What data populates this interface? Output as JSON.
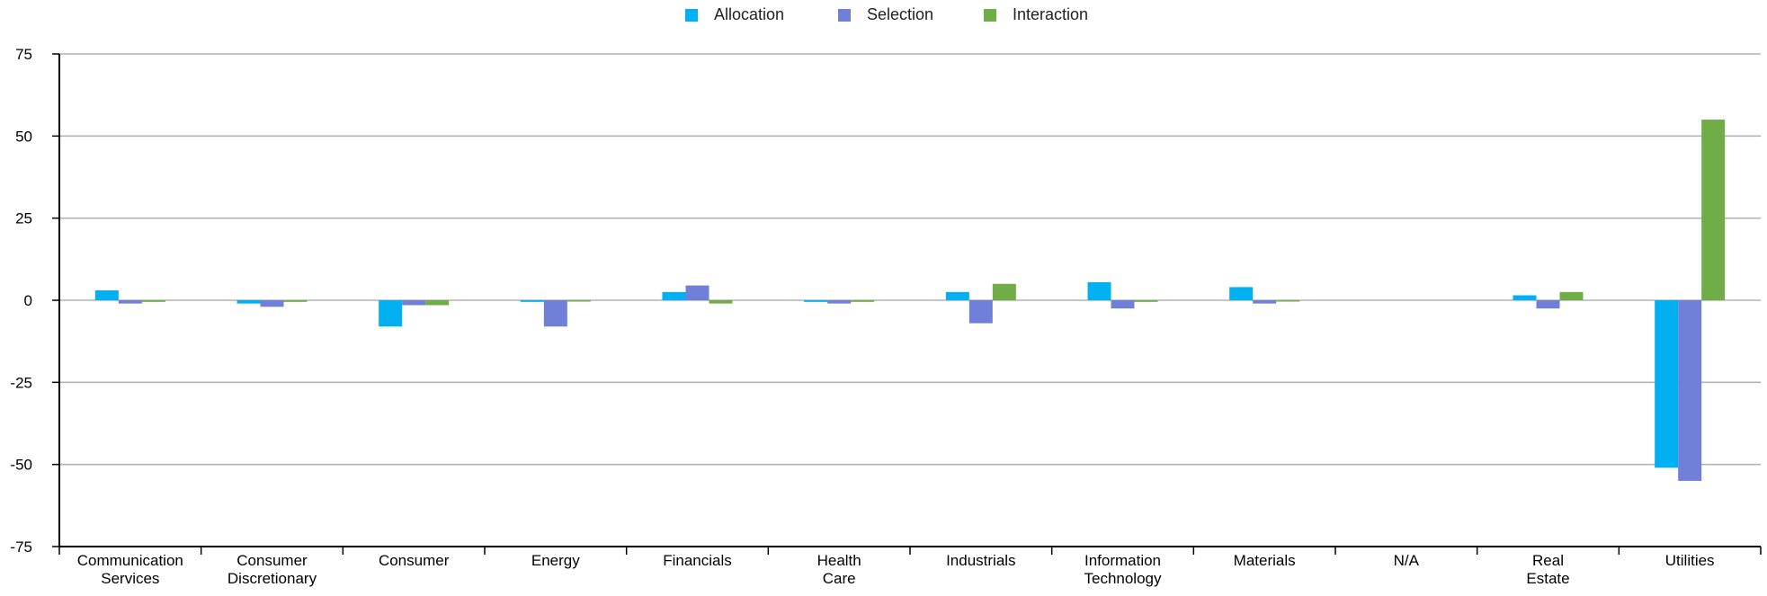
{
  "chart_data": {
    "type": "bar",
    "title": "",
    "xlabel": "",
    "ylabel": "",
    "ylim": [
      -75,
      75
    ],
    "yticks": [
      75,
      50,
      25,
      0,
      -25,
      -50,
      -75
    ],
    "grid": true,
    "legend_position": "top-center",
    "categories": [
      "Communication Services",
      "Consumer Discretionary",
      "Consumer",
      "Energy",
      "Financials",
      "Health Care",
      "Industrials",
      "Information Technology",
      "Materials",
      "N/A",
      "Real Estate",
      "Utilities"
    ],
    "series": [
      {
        "name": "Allocation",
        "color": "#00b0f0",
        "values": [
          3.0,
          -1.0,
          -8.0,
          -0.5,
          2.5,
          -0.5,
          2.5,
          5.5,
          4.0,
          0,
          1.5,
          -51.0
        ]
      },
      {
        "name": "Selection",
        "color": "#7080d8",
        "values": [
          -1.0,
          -2.0,
          -1.5,
          -8.0,
          4.5,
          -1.0,
          -7.0,
          -2.5,
          -1.0,
          0,
          -2.5,
          -55.0
        ]
      },
      {
        "name": "Interaction",
        "color": "#70ad47",
        "values": [
          -0.5,
          -0.5,
          -1.5,
          -0.3,
          -1.0,
          -0.5,
          5.0,
          -0.5,
          -0.3,
          0,
          2.5,
          55.0
        ]
      }
    ]
  }
}
